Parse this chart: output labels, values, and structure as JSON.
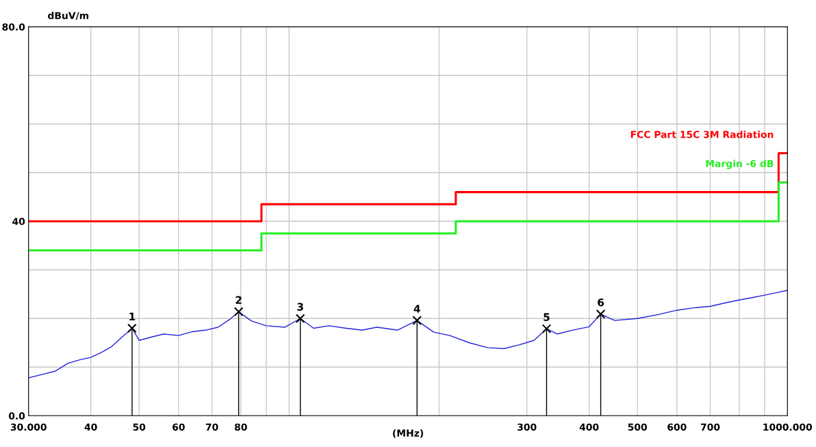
{
  "chart_data": {
    "type": "line",
    "ylabel": "dBuV/m",
    "xlabel": "(MHz)",
    "log": "x",
    "xlim": [
      30,
      1000
    ],
    "ylim": [
      0,
      80
    ],
    "xticks": [
      {
        "value": 30,
        "label": "30.000"
      },
      40,
      50,
      60,
      70,
      80,
      {
        "value": 90,
        "label": null
      },
      {
        "value": 100,
        "label": null
      },
      {
        "value": 200,
        "label": null
      },
      300,
      400,
      500,
      600,
      700,
      {
        "value": 800,
        "label": null
      },
      {
        "value": 900,
        "label": null
      },
      {
        "value": 1000,
        "label": "1000.000"
      }
    ],
    "yticks": [
      {
        "value": 0,
        "label": "0.0"
      },
      {
        "value": 10,
        "label": null
      },
      {
        "value": 20,
        "label": null
      },
      {
        "value": 30,
        "label": null
      },
      40,
      {
        "value": 50,
        "label": null
      },
      {
        "value": 60,
        "label": null
      },
      {
        "value": 70,
        "label": null
      },
      {
        "value": 80,
        "label": "80.0"
      }
    ],
    "grid": true,
    "legend": false,
    "series": [
      {
        "type": "step",
        "name": "FCC Part 15C 3M Radiation",
        "color": "#ff0000",
        "x": [
          30,
          88,
          216,
          960,
          1000
        ],
        "values": [
          40,
          43.5,
          46,
          54,
          54
        ]
      },
      {
        "type": "step",
        "name": "Margin -6 dB",
        "color": "#22ee22",
        "x": [
          30,
          88,
          216,
          960,
          1000
        ],
        "values": [
          34,
          37.5,
          40,
          48,
          48
        ]
      },
      {
        "color": "#2222dd",
        "marker": "none",
        "x": [
          30,
          32,
          34,
          36,
          38,
          40,
          42,
          44,
          46,
          48.4,
          50,
          53,
          56,
          60,
          64,
          68,
          72,
          76,
          79.2,
          84,
          90,
          98,
          105.3,
          112,
          120,
          130,
          140,
          150,
          165,
          180.6,
          195,
          210,
          230,
          250,
          270,
          290,
          310,
          328.6,
          345,
          370,
          400,
          422,
          450,
          500,
          550,
          600,
          650,
          700,
          750,
          800,
          850,
          900,
          950,
          1000
        ],
        "values": [
          7.8,
          8.5,
          9.2,
          10.8,
          11.5,
          12.0,
          13.0,
          14.2,
          16.0,
          18.0,
          15.5,
          16.2,
          16.8,
          16.5,
          17.3,
          17.6,
          18.2,
          19.8,
          21.4,
          19.5,
          18.5,
          18.2,
          20.0,
          18.0,
          18.5,
          18.0,
          17.6,
          18.2,
          17.6,
          19.6,
          17.2,
          16.5,
          15.0,
          14.0,
          13.8,
          14.6,
          15.5,
          17.9,
          16.8,
          17.6,
          18.3,
          20.9,
          19.6,
          20.0,
          20.8,
          21.7,
          22.2,
          22.5,
          23.2,
          23.8,
          24.3,
          24.8,
          25.3,
          25.8
        ]
      },
      {
        "type": "lollipop",
        "color": "#000000",
        "marker": "cross",
        "x": [
          48.4,
          79.2,
          105.3,
          180.6,
          328.6,
          422
        ],
        "values": [
          18.0,
          21.4,
          20.0,
          19.6,
          17.9,
          20.9
        ]
      }
    ],
    "annotations": [
      {
        "text": "1",
        "x": 48.4,
        "y": 18.0
      },
      {
        "text": "2",
        "x": 79.2,
        "y": 21.4
      },
      {
        "text": "3",
        "x": 105.3,
        "y": 20.0
      },
      {
        "text": "4",
        "x": 180.6,
        "y": 19.6
      },
      {
        "text": "5",
        "x": 328.6,
        "y": 17.9
      },
      {
        "text": "6",
        "x": 422,
        "y": 20.9
      }
    ]
  }
}
